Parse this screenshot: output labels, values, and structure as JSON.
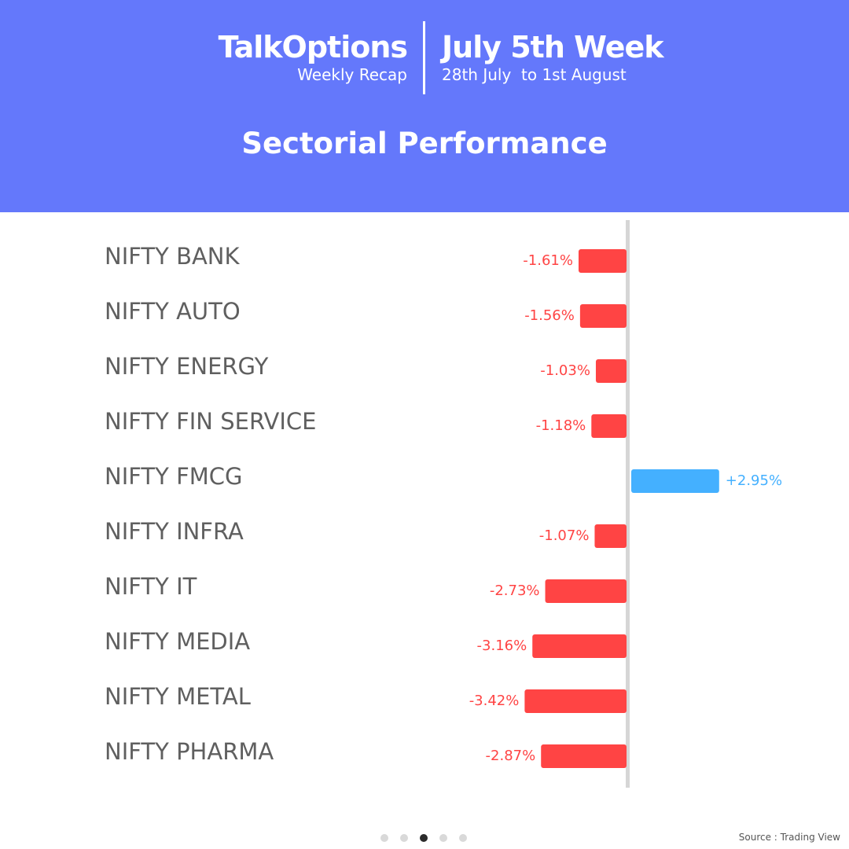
{
  "header": {
    "brand_name": "TalkOptions",
    "brand_sub": "Weekly Recap",
    "week_title": "July 5th Week",
    "week_range": "28th July  to 1st August",
    "section_title": "Sectorial Performance",
    "bg_color": "#6478fb"
  },
  "chart_data": {
    "type": "bar",
    "orientation": "horizontal",
    "categories": [
      "NIFTY BANK",
      "NIFTY AUTO",
      "NIFTY ENERGY",
      "NIFTY FIN SERVICE",
      "NIFTY FMCG",
      "NIFTY INFRA",
      "NIFTY IT",
      "NIFTY MEDIA",
      "NIFTY METAL",
      "NIFTY PHARMA"
    ],
    "values": [
      -1.61,
      -1.56,
      -1.03,
      -1.18,
      2.95,
      -1.07,
      -2.73,
      -3.16,
      -3.42,
      -2.87
    ],
    "value_labels": [
      "-1.61%",
      "-1.56%",
      "-1.03%",
      "-1.18%",
      "+2.95%",
      "-1.07%",
      "-2.73%",
      "-3.16%",
      "-3.42%",
      "-2.87%"
    ],
    "negative_color": "#ff4444",
    "positive_color": "#44b0ff",
    "axis_color": "#d6d6d6"
  },
  "pagination": {
    "count": 5,
    "active": 3
  },
  "source": "Source : Trading View"
}
